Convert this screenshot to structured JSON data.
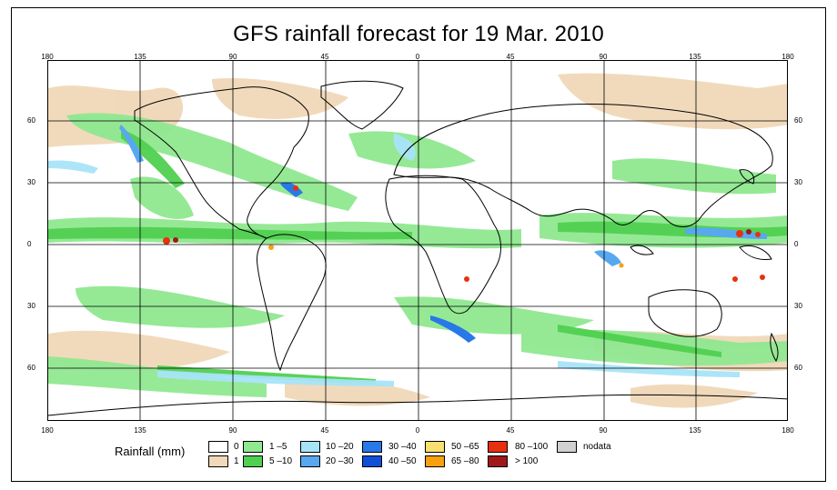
{
  "title": "GFS rainfall forecast for 19 Mar. 2010",
  "map": {
    "longitude_ticks": [
      "180",
      "135",
      "90",
      "45",
      "0",
      "45",
      "90",
      "135",
      "180"
    ],
    "latitude_ticks": [
      "60",
      "30",
      "0",
      "30",
      "60"
    ],
    "colors": {
      "ocean_background": "#ffffff",
      "graticule": "#000000",
      "coastline": "#000000"
    }
  },
  "legend": {
    "title": "Rainfall (mm)",
    "items": [
      {
        "label": "0",
        "color": "#ffffff"
      },
      {
        "label": "1",
        "color": "#f0d8b8"
      },
      {
        "label": "1 –5",
        "color": "#90e890"
      },
      {
        "label": "5 –10",
        "color": "#50d050"
      },
      {
        "label": "10 –20",
        "color": "#a8e4f8"
      },
      {
        "label": "20 –30",
        "color": "#58a8f0"
      },
      {
        "label": "30 –40",
        "color": "#2878e8"
      },
      {
        "label": "40 –50",
        "color": "#1050d8"
      },
      {
        "label": "50 –65",
        "color": "#f8e070"
      },
      {
        "label": "65 –80",
        "color": "#f8a010"
      },
      {
        "label": "80 –100",
        "color": "#e83010"
      },
      {
        "label": "> 100",
        "color": "#a01818"
      },
      {
        "label": "nodata",
        "color": "#d0d0d0"
      }
    ]
  }
}
